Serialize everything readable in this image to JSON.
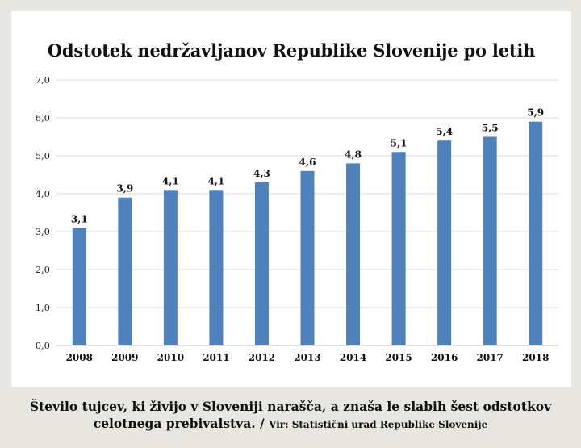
{
  "chart_data": {
    "type": "bar",
    "title": "Odstotek nedržavljanov Republike Slovenije po letih",
    "categories": [
      "2008",
      "2009",
      "2010",
      "2011",
      "2012",
      "2013",
      "2014",
      "2015",
      "2016",
      "2017",
      "2018"
    ],
    "values": [
      3.1,
      3.9,
      4.1,
      4.1,
      4.3,
      4.6,
      4.8,
      5.1,
      5.4,
      5.5,
      5.9
    ],
    "value_labels": [
      "3,1",
      "3,9",
      "4,1",
      "4,1",
      "4,3",
      "4,6",
      "4,8",
      "5,1",
      "5,4",
      "5,5",
      "5,9"
    ],
    "yticks": [
      "0,0",
      "1,0",
      "2,0",
      "3,0",
      "4,0",
      "5,0",
      "6,0",
      "7,0"
    ],
    "ylim": [
      0,
      7
    ],
    "grid": true,
    "bar_color": "#4f81bd",
    "xlabel": "",
    "ylabel": ""
  },
  "caption": {
    "line1": "Število tujcev, ki živijo v Sloveniji narašča, a znaša le slabih šest odstotkov",
    "line2": "celotnega prebivalstva. /",
    "source": "Vir: Statistični urad Republike Slovenije"
  }
}
